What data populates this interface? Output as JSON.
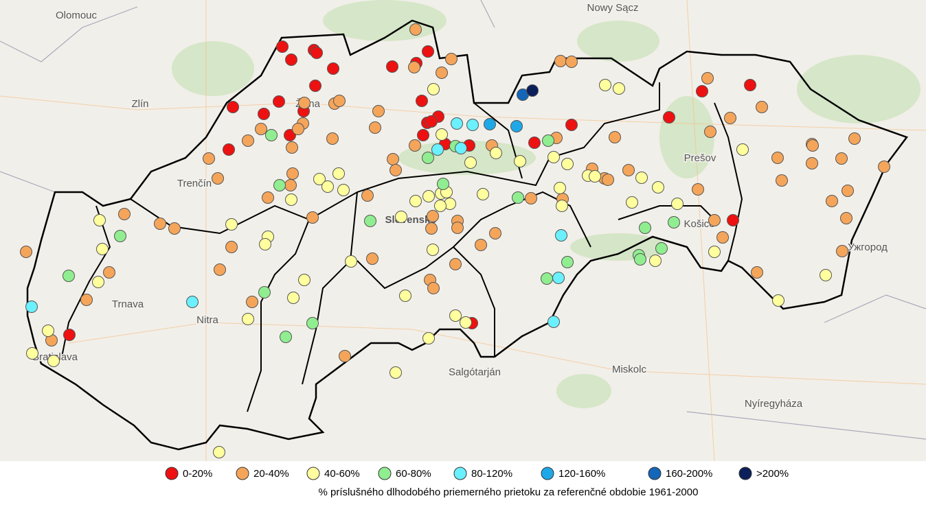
{
  "map": {
    "place_labels": [
      "Olomouc",
      "Nowy Sącz",
      "Zlín",
      "Žilina",
      "Trenčín",
      "Prešov",
      "Slovensko",
      "Košice",
      "Ужгород",
      "Trnava",
      "Nitra",
      "Bratislava",
      "Salgótarján",
      "Miskolc",
      "Nyíregyháza"
    ]
  },
  "legend": {
    "items": [
      {
        "label": "0-20%",
        "color": "#ee1111"
      },
      {
        "label": "20-40%",
        "color": "#f5a55a"
      },
      {
        "label": "40-60%",
        "color": "#ffff9e"
      },
      {
        "label": "60-80%",
        "color": "#90ee90"
      },
      {
        "label": "80-120%",
        "color": "#6af0ff"
      },
      {
        "label": "120-160%",
        "color": "#1ea8e8"
      },
      {
        "label": "160-200%",
        "color": "#1466b8"
      },
      {
        "label": ">200%",
        "color": "#0b1f5a"
      }
    ],
    "caption": "% príslušného dlhodobého priemerného prietoku za referenčné obdobie 1961-2000"
  }
}
